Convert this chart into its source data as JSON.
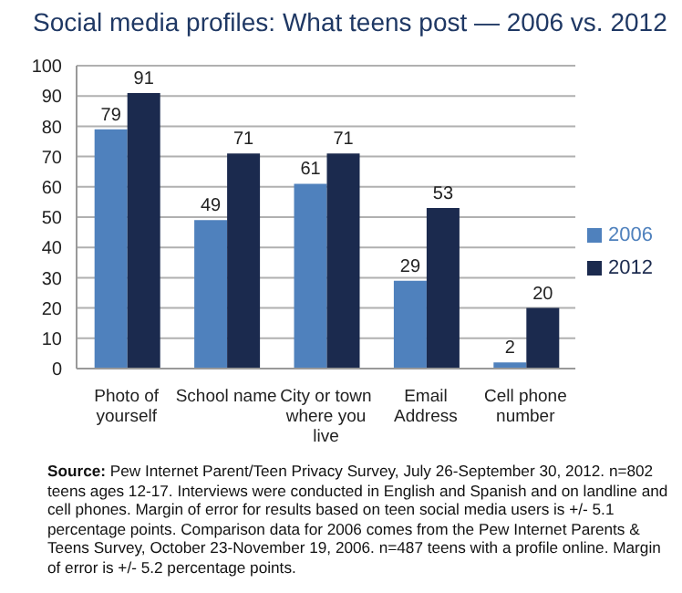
{
  "chart_data": {
    "type": "bar",
    "title": "Social media profiles: What teens post — 2006 vs. 2012",
    "categories": [
      "Photo of yourself",
      "School name",
      "City or town where you live",
      "Email Address",
      "Cell phone number"
    ],
    "series": [
      {
        "name": "2006",
        "color": "#4f81bd",
        "values": [
          79,
          49,
          61,
          29,
          2
        ]
      },
      {
        "name": "2012",
        "color": "#1b2a4e",
        "values": [
          91,
          71,
          71,
          53,
          20
        ]
      }
    ],
    "ylim": [
      0,
      100
    ],
    "yticks": [
      0,
      10,
      20,
      30,
      40,
      50,
      60,
      70,
      80,
      90,
      100
    ],
    "grid": "y",
    "legend": "right",
    "data_labels": true,
    "annotations": [
      "Source: Pew Internet Parent/Teen Privacy Survey, July 26-September 30, 2012. n=802 teens ages 12-17.  Interviews were conducted in English and Spanish and on landline and cell phones.  Margin of error for results based on teen social media users is +/- 5.1 percentage points. Comparison data for 2006 comes from the Pew Internet Parents & Teens Survey, October 23-November 19, 2006.  n=487 teens with a profile online. Margin of error is +/- 5.2 percentage points."
    ]
  }
}
